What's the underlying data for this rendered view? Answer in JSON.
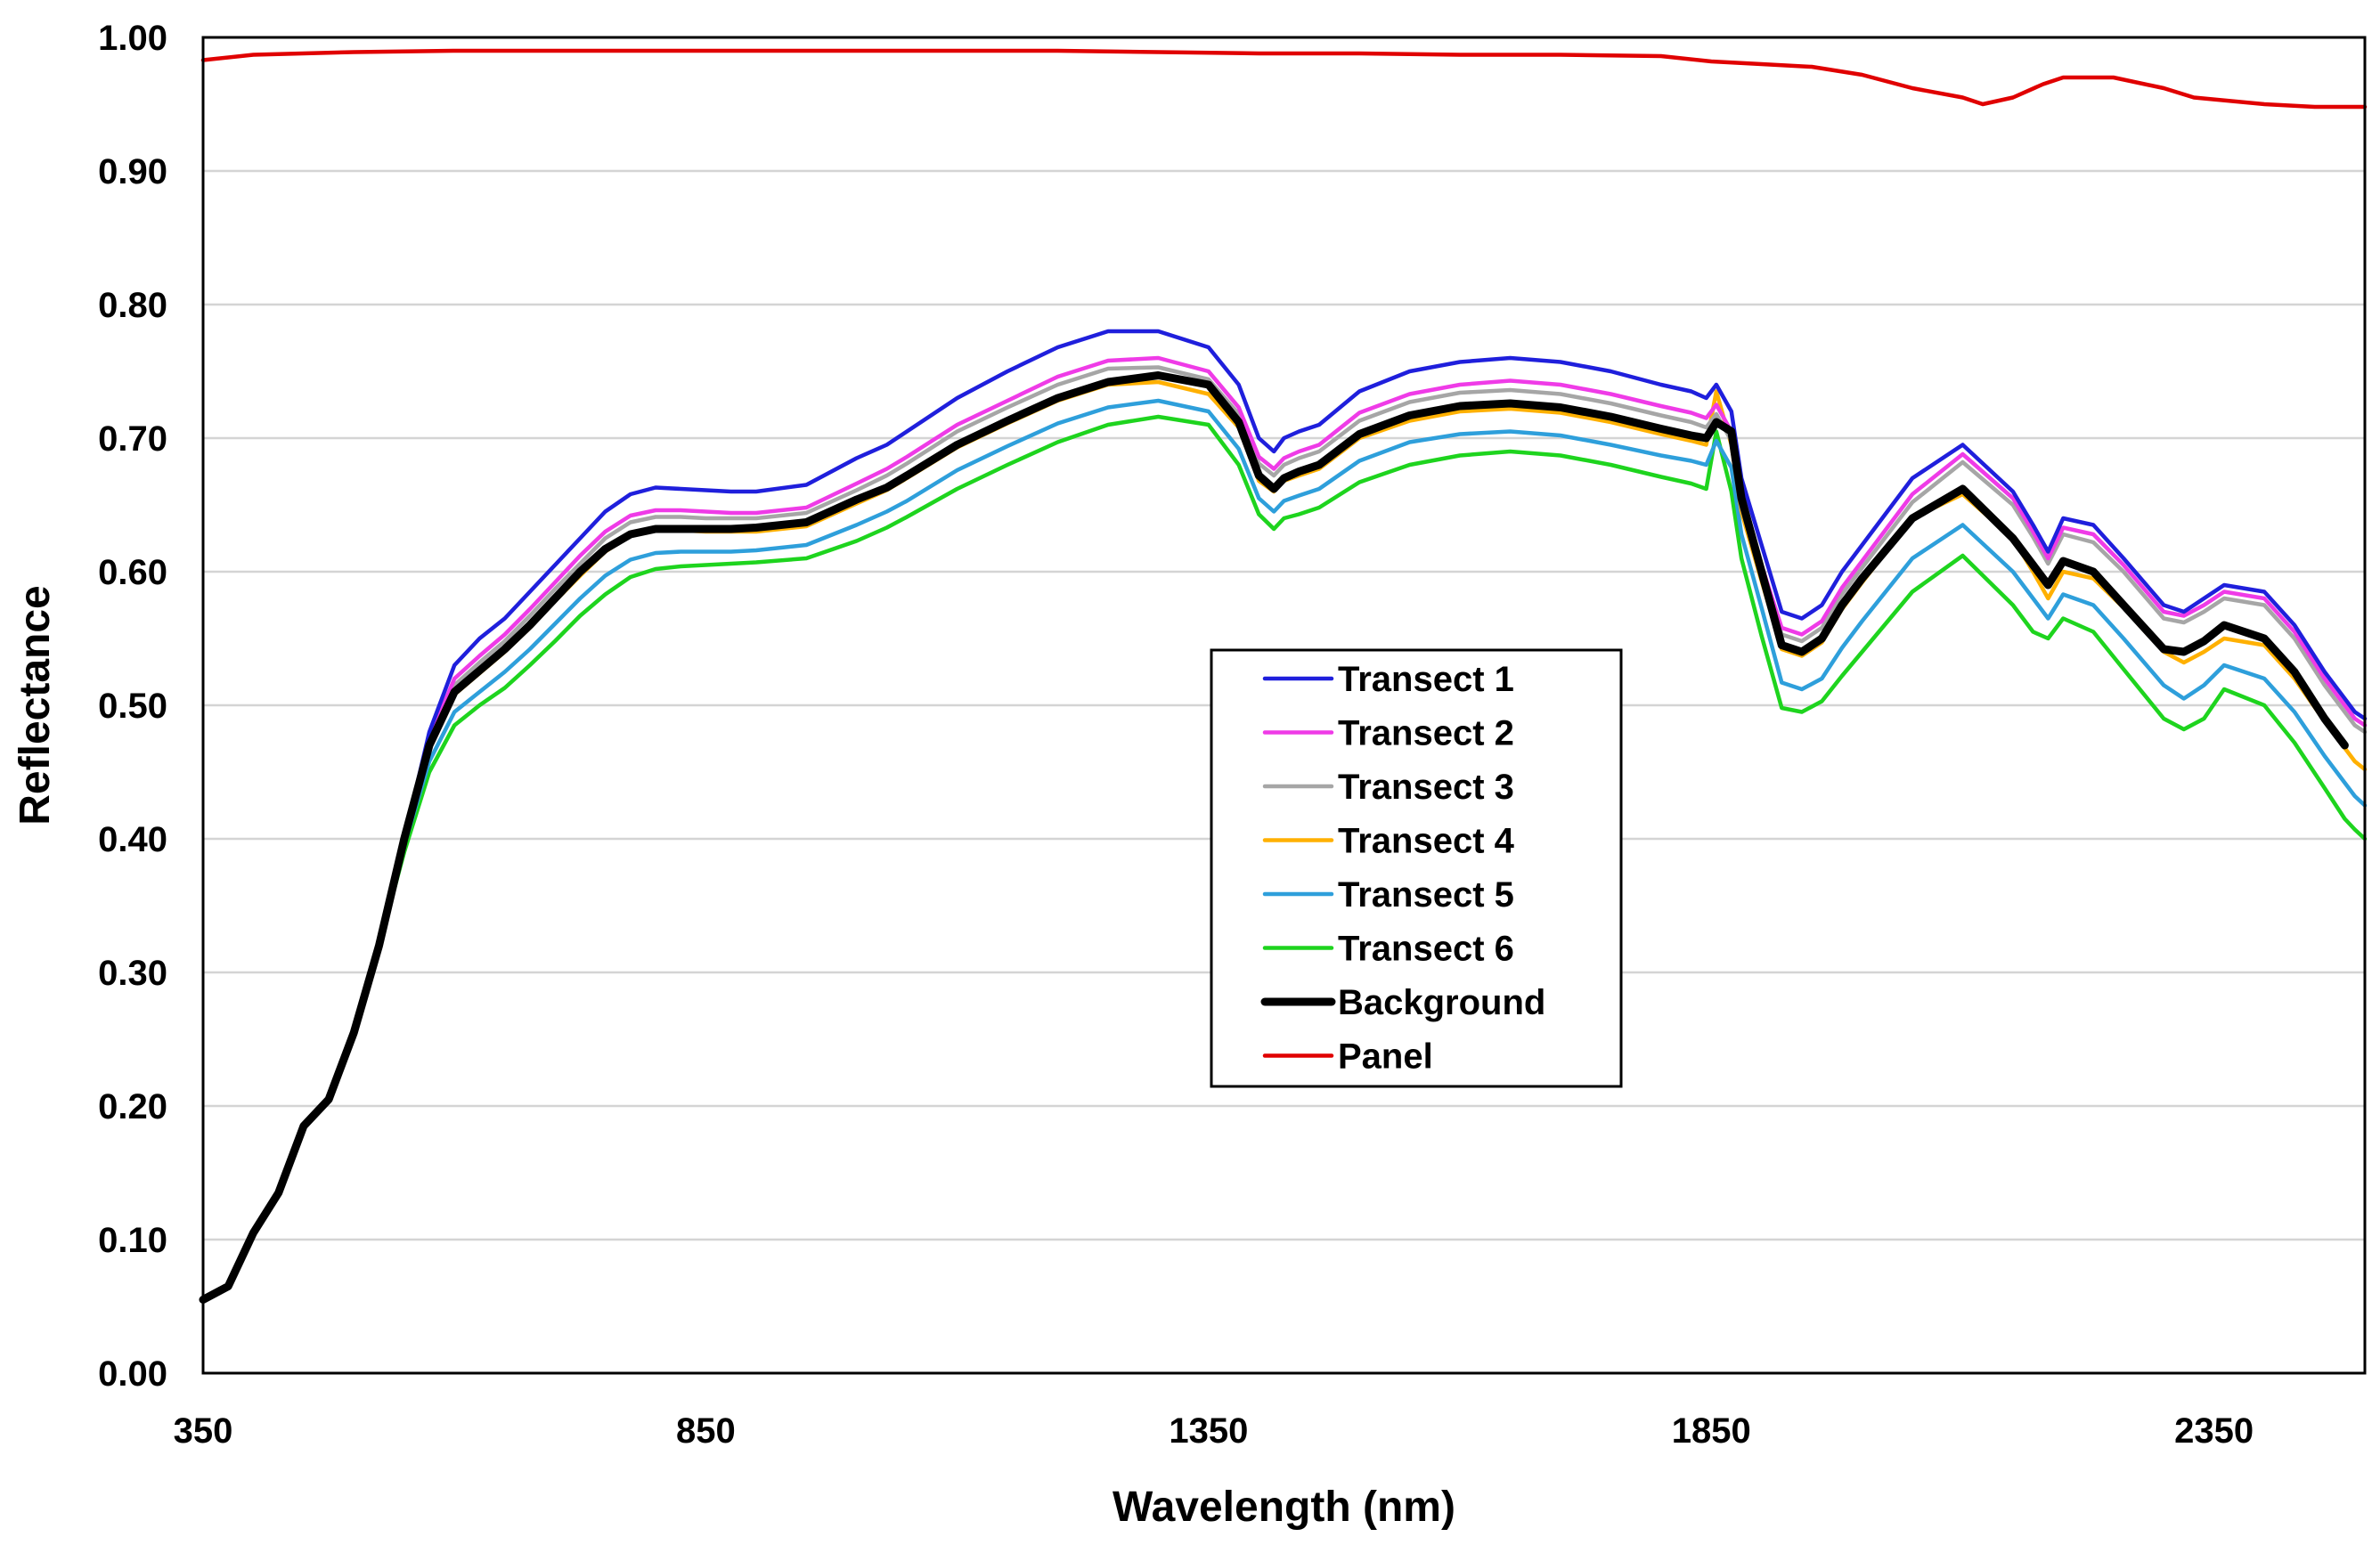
{
  "chart_data": {
    "type": "line",
    "title": "",
    "xlabel": "Wavelength (nm)",
    "ylabel": "Reflectance",
    "xlim": [
      350,
      2500
    ],
    "ylim": [
      0,
      1
    ],
    "xticks": [
      350,
      850,
      1350,
      1850,
      2350
    ],
    "xtick_labels": [
      "350",
      "850",
      "1350",
      "1850",
      "2350"
    ],
    "yticks": [
      0,
      0.1,
      0.2,
      0.3,
      0.4,
      0.5,
      0.6,
      0.7,
      0.8,
      0.9,
      1.0
    ],
    "ytick_labels": [
      "0.00",
      "0.10",
      "0.20",
      "0.30",
      "0.40",
      "0.50",
      "0.60",
      "0.70",
      "0.80",
      "0.90",
      "1.00"
    ],
    "grid": true,
    "legend_position": "center-right",
    "series": [
      {
        "name": "Transect 1",
        "color": "#1f1fdc",
        "x": [
          350,
          375,
          400,
          425,
          450,
          475,
          500,
          525,
          550,
          575,
          600,
          625,
          650,
          675,
          700,
          725,
          750,
          775,
          800,
          825,
          850,
          875,
          900,
          950,
          1000,
          1030,
          1050,
          1100,
          1150,
          1200,
          1250,
          1300,
          1350,
          1380,
          1400,
          1415,
          1425,
          1440,
          1460,
          1500,
          1550,
          1600,
          1650,
          1700,
          1750,
          1800,
          1830,
          1845,
          1855,
          1870,
          1880,
          1900,
          1920,
          1940,
          1960,
          1980,
          2000,
          2050,
          2100,
          2150,
          2170,
          2185,
          2200,
          2230,
          2260,
          2300,
          2320,
          2340,
          2360,
          2400,
          2430,
          2460,
          2480,
          2490,
          2500
        ],
        "y": [
          0.055,
          0.065,
          0.105,
          0.135,
          0.185,
          0.205,
          0.255,
          0.32,
          0.4,
          0.48,
          0.53,
          0.55,
          0.565,
          0.585,
          0.605,
          0.625,
          0.645,
          0.658,
          0.663,
          0.662,
          0.661,
          0.66,
          0.66,
          0.665,
          0.685,
          0.695,
          0.705,
          0.73,
          0.75,
          0.768,
          0.78,
          0.78,
          0.768,
          0.74,
          0.7,
          0.69,
          0.7,
          0.705,
          0.71,
          0.735,
          0.75,
          0.757,
          0.76,
          0.757,
          0.75,
          0.74,
          0.735,
          0.73,
          0.74,
          0.72,
          0.67,
          0.62,
          0.57,
          0.565,
          0.575,
          0.6,
          0.62,
          0.67,
          0.695,
          0.66,
          0.635,
          0.615,
          0.64,
          0.635,
          0.61,
          0.575,
          0.57,
          0.58,
          0.59,
          0.585,
          0.56,
          0.525,
          0.505,
          0.495,
          0.49
        ]
      },
      {
        "name": "Transect 2",
        "color": "#ef3be7",
        "x": [
          350,
          375,
          400,
          425,
          450,
          475,
          500,
          525,
          550,
          575,
          600,
          625,
          650,
          675,
          700,
          725,
          750,
          775,
          800,
          825,
          850,
          875,
          900,
          950,
          1000,
          1030,
          1050,
          1100,
          1150,
          1200,
          1250,
          1300,
          1350,
          1380,
          1400,
          1415,
          1425,
          1440,
          1460,
          1500,
          1550,
          1600,
          1650,
          1700,
          1750,
          1800,
          1830,
          1845,
          1855,
          1870,
          1880,
          1900,
          1920,
          1940,
          1960,
          1980,
          2000,
          2050,
          2100,
          2150,
          2170,
          2185,
          2200,
          2230,
          2260,
          2300,
          2320,
          2340,
          2360,
          2400,
          2430,
          2460,
          2480,
          2490,
          2500
        ],
        "y": [
          0.055,
          0.065,
          0.105,
          0.135,
          0.185,
          0.205,
          0.255,
          0.32,
          0.4,
          0.475,
          0.52,
          0.537,
          0.553,
          0.572,
          0.592,
          0.612,
          0.63,
          0.642,
          0.646,
          0.646,
          0.645,
          0.644,
          0.644,
          0.648,
          0.666,
          0.677,
          0.686,
          0.71,
          0.728,
          0.746,
          0.758,
          0.76,
          0.75,
          0.723,
          0.686,
          0.677,
          0.685,
          0.69,
          0.695,
          0.719,
          0.733,
          0.74,
          0.743,
          0.74,
          0.733,
          0.724,
          0.719,
          0.715,
          0.725,
          0.705,
          0.655,
          0.605,
          0.558,
          0.553,
          0.563,
          0.588,
          0.608,
          0.658,
          0.688,
          0.655,
          0.63,
          0.61,
          0.633,
          0.628,
          0.605,
          0.57,
          0.567,
          0.575,
          0.585,
          0.58,
          0.555,
          0.52,
          0.5,
          0.49,
          0.485
        ]
      },
      {
        "name": "Transect 3",
        "color": "#a6a6a6",
        "x": [
          350,
          375,
          400,
          425,
          450,
          475,
          500,
          525,
          550,
          575,
          600,
          625,
          650,
          675,
          700,
          725,
          750,
          775,
          800,
          825,
          850,
          875,
          900,
          950,
          1000,
          1030,
          1050,
          1100,
          1150,
          1200,
          1250,
          1300,
          1350,
          1380,
          1400,
          1415,
          1425,
          1440,
          1460,
          1500,
          1550,
          1600,
          1650,
          1700,
          1750,
          1800,
          1830,
          1845,
          1855,
          1870,
          1880,
          1900,
          1920,
          1940,
          1960,
          1980,
          2000,
          2050,
          2100,
          2150,
          2170,
          2185,
          2200,
          2230,
          2260,
          2300,
          2320,
          2340,
          2360,
          2400,
          2430,
          2460,
          2480,
          2490,
          2500
        ],
        "y": [
          0.055,
          0.065,
          0.105,
          0.135,
          0.185,
          0.205,
          0.255,
          0.32,
          0.4,
          0.473,
          0.515,
          0.532,
          0.548,
          0.567,
          0.587,
          0.606,
          0.625,
          0.637,
          0.641,
          0.641,
          0.64,
          0.64,
          0.64,
          0.644,
          0.661,
          0.672,
          0.681,
          0.705,
          0.723,
          0.74,
          0.752,
          0.753,
          0.744,
          0.718,
          0.681,
          0.672,
          0.68,
          0.685,
          0.69,
          0.713,
          0.727,
          0.734,
          0.736,
          0.733,
          0.726,
          0.717,
          0.712,
          0.708,
          0.718,
          0.698,
          0.648,
          0.598,
          0.553,
          0.548,
          0.558,
          0.583,
          0.603,
          0.652,
          0.682,
          0.65,
          0.626,
          0.606,
          0.628,
          0.622,
          0.6,
          0.565,
          0.562,
          0.57,
          0.58,
          0.575,
          0.55,
          0.515,
          0.495,
          0.485,
          0.48
        ]
      },
      {
        "name": "Transect 4",
        "color": "#ffb000",
        "x": [
          350,
          375,
          400,
          425,
          450,
          475,
          500,
          525,
          550,
          575,
          600,
          625,
          650,
          675,
          700,
          725,
          750,
          775,
          800,
          825,
          850,
          875,
          900,
          950,
          1000,
          1030,
          1050,
          1100,
          1150,
          1200,
          1250,
          1300,
          1350,
          1380,
          1400,
          1415,
          1425,
          1440,
          1460,
          1500,
          1550,
          1600,
          1650,
          1700,
          1750,
          1800,
          1830,
          1845,
          1855,
          1870,
          1880,
          1900,
          1920,
          1940,
          1960,
          1980,
          2000,
          2050,
          2100,
          2150,
          2170,
          2185,
          2200,
          2230,
          2260,
          2300,
          2320,
          2340,
          2360,
          2400,
          2430,
          2460,
          2480,
          2490,
          2500
        ],
        "y": [
          0.055,
          0.065,
          0.105,
          0.135,
          0.185,
          0.205,
          0.255,
          0.32,
          0.4,
          0.468,
          0.508,
          0.524,
          0.54,
          0.558,
          0.578,
          0.597,
          0.615,
          0.627,
          0.631,
          0.631,
          0.63,
          0.63,
          0.63,
          0.634,
          0.651,
          0.661,
          0.67,
          0.693,
          0.711,
          0.728,
          0.74,
          0.742,
          0.733,
          0.708,
          0.668,
          0.66,
          0.668,
          0.672,
          0.677,
          0.7,
          0.713,
          0.72,
          0.722,
          0.719,
          0.712,
          0.703,
          0.698,
          0.695,
          0.735,
          0.695,
          0.645,
          0.593,
          0.542,
          0.537,
          0.547,
          0.572,
          0.592,
          0.64,
          0.658,
          0.625,
          0.6,
          0.58,
          0.6,
          0.595,
          0.573,
          0.54,
          0.532,
          0.54,
          0.55,
          0.545,
          0.52,
          0.488,
          0.468,
          0.458,
          0.452
        ]
      },
      {
        "name": "Transect 5",
        "color": "#2e9fdb",
        "x": [
          350,
          375,
          400,
          425,
          450,
          475,
          500,
          525,
          550,
          575,
          600,
          625,
          650,
          675,
          700,
          725,
          750,
          775,
          800,
          825,
          850,
          875,
          900,
          950,
          1000,
          1030,
          1050,
          1100,
          1150,
          1200,
          1250,
          1300,
          1350,
          1380,
          1400,
          1415,
          1425,
          1440,
          1460,
          1500,
          1550,
          1600,
          1650,
          1700,
          1750,
          1800,
          1830,
          1845,
          1855,
          1870,
          1880,
          1900,
          1920,
          1940,
          1960,
          1980,
          2000,
          2050,
          2100,
          2150,
          2170,
          2185,
          2200,
          2230,
          2260,
          2300,
          2320,
          2340,
          2360,
          2400,
          2430,
          2460,
          2480,
          2490,
          2500
        ],
        "y": [
          0.055,
          0.065,
          0.105,
          0.135,
          0.185,
          0.205,
          0.255,
          0.32,
          0.395,
          0.458,
          0.495,
          0.51,
          0.525,
          0.542,
          0.561,
          0.58,
          0.597,
          0.609,
          0.614,
          0.615,
          0.615,
          0.615,
          0.616,
          0.62,
          0.635,
          0.645,
          0.653,
          0.676,
          0.694,
          0.711,
          0.723,
          0.728,
          0.72,
          0.692,
          0.655,
          0.645,
          0.653,
          0.657,
          0.662,
          0.683,
          0.697,
          0.703,
          0.705,
          0.702,
          0.695,
          0.687,
          0.683,
          0.68,
          0.698,
          0.678,
          0.628,
          0.573,
          0.517,
          0.512,
          0.52,
          0.543,
          0.563,
          0.61,
          0.635,
          0.6,
          0.58,
          0.565,
          0.583,
          0.575,
          0.55,
          0.515,
          0.505,
          0.515,
          0.53,
          0.52,
          0.495,
          0.462,
          0.442,
          0.432,
          0.425
        ]
      },
      {
        "name": "Transect 6",
        "color": "#1ed41e",
        "x": [
          350,
          375,
          400,
          425,
          450,
          475,
          500,
          525,
          550,
          575,
          600,
          625,
          650,
          675,
          700,
          725,
          750,
          775,
          800,
          825,
          850,
          875,
          900,
          950,
          1000,
          1030,
          1050,
          1100,
          1150,
          1200,
          1250,
          1300,
          1350,
          1380,
          1400,
          1415,
          1425,
          1440,
          1460,
          1500,
          1550,
          1600,
          1650,
          1700,
          1750,
          1800,
          1830,
          1845,
          1855,
          1870,
          1880,
          1900,
          1920,
          1940,
          1960,
          1980,
          2000,
          2050,
          2100,
          2150,
          2170,
          2185,
          2200,
          2230,
          2260,
          2300,
          2320,
          2340,
          2360,
          2400,
          2430,
          2460,
          2480,
          2490,
          2500
        ],
        "y": [
          0.055,
          0.065,
          0.105,
          0.135,
          0.185,
          0.205,
          0.255,
          0.32,
          0.39,
          0.45,
          0.485,
          0.5,
          0.513,
          0.53,
          0.548,
          0.567,
          0.583,
          0.596,
          0.602,
          0.604,
          0.605,
          0.606,
          0.607,
          0.61,
          0.623,
          0.633,
          0.641,
          0.662,
          0.68,
          0.697,
          0.71,
          0.716,
          0.71,
          0.68,
          0.643,
          0.632,
          0.64,
          0.643,
          0.648,
          0.667,
          0.68,
          0.687,
          0.69,
          0.687,
          0.68,
          0.671,
          0.666,
          0.662,
          0.705,
          0.66,
          0.61,
          0.552,
          0.498,
          0.495,
          0.503,
          0.522,
          0.54,
          0.585,
          0.612,
          0.575,
          0.555,
          0.55,
          0.565,
          0.555,
          0.527,
          0.49,
          0.482,
          0.49,
          0.512,
          0.5,
          0.472,
          0.438,
          0.415,
          0.407,
          0.4
        ]
      },
      {
        "name": "Background",
        "color": "#000000",
        "x": [
          350,
          375,
          400,
          425,
          450,
          475,
          500,
          525,
          550,
          575,
          600,
          625,
          650,
          675,
          700,
          725,
          750,
          775,
          800,
          825,
          850,
          875,
          900,
          950,
          1000,
          1030,
          1050,
          1100,
          1150,
          1200,
          1250,
          1300,
          1350,
          1380,
          1400,
          1415,
          1425,
          1440,
          1460,
          1500,
          1550,
          1600,
          1650,
          1700,
          1750,
          1800,
          1830,
          1845,
          1855,
          1870,
          1880,
          1900,
          1920,
          1940,
          1960,
          1980,
          2000,
          2050,
          2100,
          2150,
          2170,
          2185,
          2200,
          2230,
          2260,
          2300,
          2320,
          2340,
          2360,
          2400,
          2430,
          2460,
          2480
        ],
        "y": [
          0.055,
          0.065,
          0.105,
          0.135,
          0.185,
          0.205,
          0.255,
          0.32,
          0.4,
          0.47,
          0.51,
          0.526,
          0.542,
          0.56,
          0.58,
          0.6,
          0.617,
          0.628,
          0.632,
          0.632,
          0.632,
          0.632,
          0.633,
          0.637,
          0.654,
          0.663,
          0.672,
          0.695,
          0.713,
          0.73,
          0.742,
          0.747,
          0.74,
          0.712,
          0.672,
          0.662,
          0.67,
          0.675,
          0.68,
          0.703,
          0.717,
          0.724,
          0.726,
          0.723,
          0.716,
          0.707,
          0.702,
          0.7,
          0.712,
          0.705,
          0.655,
          0.6,
          0.545,
          0.54,
          0.55,
          0.575,
          0.595,
          0.64,
          0.662,
          0.625,
          0.605,
          0.59,
          0.608,
          0.6,
          0.575,
          0.542,
          0.54,
          0.548,
          0.56,
          0.55,
          0.525,
          0.49,
          0.47
        ]
      },
      {
        "name": "Panel",
        "color": "#e00000",
        "x": [
          350,
          400,
          500,
          600,
          700,
          800,
          900,
          1000,
          1100,
          1200,
          1300,
          1400,
          1500,
          1600,
          1700,
          1800,
          1850,
          1900,
          1950,
          2000,
          2050,
          2100,
          2120,
          2150,
          2180,
          2200,
          2250,
          2300,
          2330,
          2400,
          2450,
          2500
        ],
        "y": [
          0.983,
          0.987,
          0.989,
          0.99,
          0.99,
          0.99,
          0.99,
          0.99,
          0.99,
          0.99,
          0.989,
          0.988,
          0.988,
          0.987,
          0.987,
          0.986,
          0.982,
          0.98,
          0.978,
          0.972,
          0.962,
          0.955,
          0.95,
          0.955,
          0.965,
          0.97,
          0.97,
          0.962,
          0.955,
          0.95,
          0.948,
          0.948
        ]
      }
    ]
  }
}
